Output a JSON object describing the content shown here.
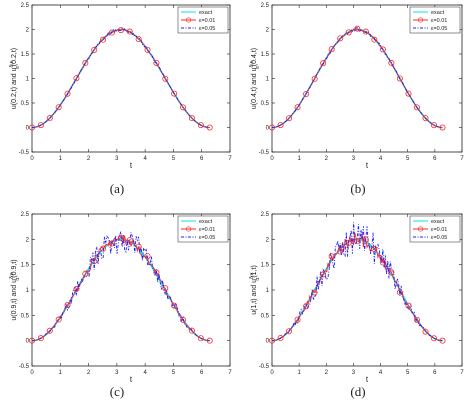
{
  "chart_data": [
    {
      "type": "line",
      "caption": "(a)",
      "xlabel": "t",
      "ylabel": "u(0.2,t) and u",
      "ylabel_sup": "δ,ε",
      "ylabel_sub": "α",
      "ylabel_tail": "(0.2,t)",
      "xlim": [
        0,
        7
      ],
      "ylim": [
        -0.5,
        2.5
      ],
      "xticks": [
        0,
        1,
        2,
        3,
        4,
        5,
        6,
        7
      ],
      "yticks": [
        -0.5,
        0,
        0.5,
        1,
        1.5,
        2,
        2.5
      ],
      "legend": {
        "placement": "top-right",
        "entries": [
          {
            "label": "exact"
          },
          {
            "label": "ε=0.01"
          },
          {
            "label": "ε=0.05"
          }
        ]
      },
      "function": "1 - cos(t)",
      "t_range": [
        0,
        6.2832
      ],
      "noise": {
        "eps_001": 0.02,
        "eps_005": 0.035
      }
    },
    {
      "type": "line",
      "caption": "(b)",
      "xlabel": "t",
      "ylabel": "u(0.4,t) and u",
      "ylabel_sup": "δ,ε",
      "ylabel_sub": "α",
      "ylabel_tail": "(0.4,t)",
      "xlim": [
        0,
        7
      ],
      "ylim": [
        -0.5,
        2.5
      ],
      "xticks": [
        0,
        1,
        2,
        3,
        4,
        5,
        6,
        7
      ],
      "yticks": [
        -0.5,
        0,
        0.5,
        1,
        1.5,
        2,
        2.5
      ],
      "legend": {
        "placement": "top-right",
        "entries": [
          {
            "label": "exact"
          },
          {
            "label": "ε=0.01"
          },
          {
            "label": "ε=0.05"
          }
        ]
      },
      "function": "1 - cos(t)",
      "t_range": [
        0,
        6.2832
      ],
      "noise": {
        "eps_001": 0.02,
        "eps_005": 0.04
      }
    },
    {
      "type": "line",
      "caption": "(c)",
      "xlabel": "t",
      "ylabel": "u(0.9,t) and u",
      "ylabel_sup": "δ,ε",
      "ylabel_sub": "α",
      "ylabel_tail": "(0.9,t)",
      "xlim": [
        0,
        7
      ],
      "ylim": [
        -0.5,
        2.5
      ],
      "xticks": [
        0,
        1,
        2,
        3,
        4,
        5,
        6,
        7
      ],
      "yticks": [
        -0.5,
        0,
        0.5,
        1,
        1.5,
        2,
        2.5
      ],
      "legend": {
        "placement": "top-right",
        "entries": [
          {
            "label": "exact"
          },
          {
            "label": "ε=0.01"
          },
          {
            "label": "ε=0.05"
          }
        ]
      },
      "function": "1 - cos(t)",
      "t_range": [
        0,
        6.2832
      ],
      "noise": {
        "eps_001": 0.1,
        "eps_005": 0.28
      }
    },
    {
      "type": "line",
      "caption": "(d)",
      "xlabel": "t",
      "ylabel": "u(1,t) and u",
      "ylabel_sup": "δ,ε",
      "ylabel_sub": "α",
      "ylabel_tail": "(1,t)",
      "xlim": [
        0,
        7
      ],
      "ylim": [
        -0.5,
        2.5
      ],
      "xticks": [
        0,
        1,
        2,
        3,
        4,
        5,
        6,
        7
      ],
      "yticks": [
        -0.5,
        0,
        0.5,
        1,
        1.5,
        2,
        2.5
      ],
      "legend": {
        "placement": "top-right",
        "entries": [
          {
            "label": "exact"
          },
          {
            "label": "ε=0.01"
          },
          {
            "label": "ε=0.05"
          }
        ]
      },
      "function": "1 - cos(t)",
      "t_range": [
        0,
        6.2832
      ],
      "noise": {
        "eps_001": 0.14,
        "eps_005": 0.35
      }
    }
  ],
  "colors": {
    "exact": "#00e5ee",
    "eps_001": "#ff2a2a",
    "eps_005": "#1c1cff",
    "axis": "#222222"
  }
}
